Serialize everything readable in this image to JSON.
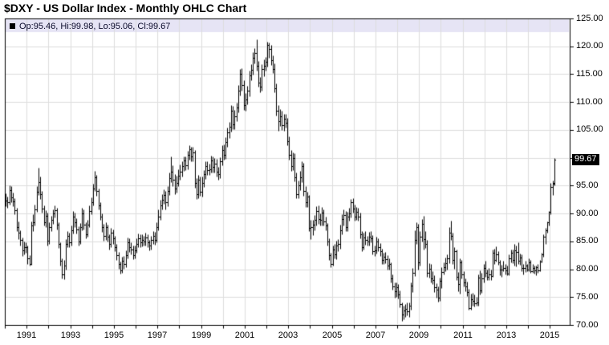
{
  "title": "$DXY - US Dollar Index - Monthly OHLC Chart",
  "legend": {
    "marker": "black-square",
    "text": "Op:95.46, Hi:99.98, Lo:95.06, Cl:99.67"
  },
  "last_price_badge": "99.67",
  "colors": {
    "background": "#ffffff",
    "band": "#e6e4f5",
    "grid": "#dddddd",
    "frame": "#000000",
    "bar": "#000000",
    "badge_bg": "#000000",
    "badge_text": "#ffffff"
  },
  "y_axis": {
    "labels": [
      "125.00",
      "120.00",
      "115.00",
      "110.00",
      "105.00",
      "95.00",
      "90.00",
      "85.00",
      "80.00",
      "75.00",
      "70.00"
    ]
  },
  "x_axis": {
    "labels": [
      "1991",
      "1993",
      "1995",
      "1997",
      "1999",
      "2001",
      "2003",
      "2005",
      "2007",
      "2009",
      "2011",
      "2013",
      "2015"
    ]
  },
  "chart_data": {
    "type": "ohlc",
    "symbol": "$DXY",
    "title": "$DXY - US Dollar Index - Monthly OHLC Chart",
    "timeframe": "Monthly",
    "start": "1990-01",
    "end": "2015-03",
    "ylim": [
      70,
      125
    ],
    "y_tick_step": 5,
    "grid": true,
    "legend_position": "top-left-band",
    "axis_labels_position": "right",
    "last": {
      "open": 95.46,
      "high": 99.98,
      "low": 95.06,
      "close": 99.67
    },
    "first_open": 92.5,
    "start_year": 1990,
    "months_format": "[high, low, close] (open = previous close)",
    "months": [
      [
        93.6,
        91.3,
        92.3
      ],
      [
        93.1,
        91.0,
        92.0
      ],
      [
        95.0,
        91.6,
        94.2
      ],
      [
        94.9,
        92.0,
        92.9
      ],
      [
        93.8,
        91.3,
        92.2
      ],
      [
        92.7,
        89.9,
        90.6
      ],
      [
        91.0,
        86.9,
        87.6
      ],
      [
        88.6,
        85.4,
        86.5
      ],
      [
        87.0,
        84.2,
        85.2
      ],
      [
        85.7,
        82.4,
        83.4
      ],
      [
        85.0,
        82.6,
        84.0
      ],
      [
        84.9,
        82.9,
        83.9
      ],
      [
        84.3,
        81.0,
        82.0
      ],
      [
        82.5,
        80.6,
        81.0
      ],
      [
        88.6,
        80.8,
        87.9
      ],
      [
        89.9,
        86.8,
        88.5
      ],
      [
        91.6,
        87.9,
        90.8
      ],
      [
        94.9,
        90.3,
        93.9
      ],
      [
        98.2,
        93.3,
        95.6
      ],
      [
        96.6,
        92.6,
        93.5
      ],
      [
        94.0,
        90.2,
        90.9
      ],
      [
        91.5,
        87.8,
        88.5
      ],
      [
        90.6,
        87.5,
        89.6
      ],
      [
        90.1,
        84.3,
        85.1
      ],
      [
        88.4,
        84.5,
        87.5
      ],
      [
        89.6,
        86.9,
        88.8
      ],
      [
        90.8,
        88.1,
        90.0
      ],
      [
        91.4,
        89.3,
        90.6
      ],
      [
        91.0,
        87.2,
        88.0
      ],
      [
        88.4,
        83.8,
        84.5
      ],
      [
        84.9,
        80.7,
        81.5
      ],
      [
        81.9,
        78.3,
        79.0
      ],
      [
        81.6,
        78.2,
        80.6
      ],
      [
        85.4,
        79.9,
        84.6
      ],
      [
        86.9,
        83.9,
        86.0
      ],
      [
        86.6,
        84.0,
        84.8
      ],
      [
        87.8,
        84.2,
        87.0
      ],
      [
        90.4,
        86.4,
        89.5
      ],
      [
        90.1,
        87.5,
        88.5
      ],
      [
        89.2,
        86.4,
        87.2
      ],
      [
        87.7,
        84.3,
        85.0
      ],
      [
        88.3,
        84.5,
        87.5
      ],
      [
        91.0,
        87.0,
        90.0
      ],
      [
        90.8,
        87.1,
        88.0
      ],
      [
        88.5,
        85.5,
        86.3
      ],
      [
        88.8,
        85.8,
        88.0
      ],
      [
        91.4,
        87.6,
        90.5
      ],
      [
        92.9,
        89.8,
        92.0
      ],
      [
        95.4,
        91.5,
        94.5
      ],
      [
        97.7,
        94.0,
        96.5
      ],
      [
        96.9,
        93.2,
        94.0
      ],
      [
        94.5,
        90.8,
        91.5
      ],
      [
        92.0,
        88.8,
        89.5
      ],
      [
        90.0,
        86.7,
        87.5
      ],
      [
        88.1,
        85.1,
        86.0
      ],
      [
        88.4,
        85.3,
        87.5
      ],
      [
        88.0,
        85.0,
        85.8
      ],
      [
        86.3,
        83.6,
        84.5
      ],
      [
        87.4,
        83.9,
        86.5
      ],
      [
        87.1,
        84.6,
        85.5
      ],
      [
        86.0,
        83.2,
        84.0
      ],
      [
        84.6,
        81.7,
        82.5
      ],
      [
        83.1,
        80.1,
        80.9
      ],
      [
        81.4,
        79.2,
        79.8
      ],
      [
        82.3,
        79.3,
        81.5
      ],
      [
        82.4,
        80.1,
        81.0
      ],
      [
        83.4,
        80.3,
        82.5
      ],
      [
        85.7,
        81.9,
        84.8
      ],
      [
        85.6,
        83.1,
        84.0
      ],
      [
        84.9,
        82.6,
        83.5
      ],
      [
        84.2,
        81.8,
        82.5
      ],
      [
        84.2,
        81.9,
        83.4
      ],
      [
        85.5,
        82.9,
        84.6
      ],
      [
        86.4,
        83.9,
        85.6
      ],
      [
        86.3,
        84.0,
        84.8
      ],
      [
        86.2,
        84.1,
        85.3
      ],
      [
        86.0,
        84.2,
        85.0
      ],
      [
        86.5,
        84.3,
        85.7
      ],
      [
        86.2,
        84.0,
        84.8
      ],
      [
        85.3,
        83.4,
        84.2
      ],
      [
        86.0,
        83.5,
        85.2
      ],
      [
        86.9,
        84.5,
        86.0
      ],
      [
        86.7,
        84.4,
        85.3
      ],
      [
        88.4,
        84.8,
        87.6
      ],
      [
        90.8,
        87.0,
        89.5
      ],
      [
        92.5,
        88.8,
        91.5
      ],
      [
        93.4,
        90.7,
        92.5
      ],
      [
        94.4,
        91.7,
        93.3
      ],
      [
        94.0,
        90.8,
        92.0
      ],
      [
        94.9,
        91.3,
        94.0
      ],
      [
        97.4,
        93.3,
        96.3
      ],
      [
        100.3,
        95.6,
        97.5
      ],
      [
        98.6,
        94.9,
        96.0
      ],
      [
        97.0,
        93.5,
        94.5
      ],
      [
        96.8,
        93.8,
        95.5
      ],
      [
        97.9,
        94.9,
        96.8
      ],
      [
        98.8,
        96.0,
        97.5
      ],
      [
        99.4,
        96.6,
        98.5
      ],
      [
        100.3,
        97.6,
        99.5
      ],
      [
        100.2,
        97.8,
        98.6
      ],
      [
        101.3,
        97.9,
        100.5
      ],
      [
        102.2,
        99.6,
        101.5
      ],
      [
        102.0,
        99.4,
        100.2
      ],
      [
        102.0,
        99.3,
        101.0
      ],
      [
        101.4,
        94.6,
        95.5
      ],
      [
        96.4,
        92.6,
        93.5
      ],
      [
        96.9,
        92.8,
        96.0
      ],
      [
        96.7,
        93.2,
        93.9
      ],
      [
        96.6,
        93.1,
        95.5
      ],
      [
        97.8,
        94.8,
        97.0
      ],
      [
        99.3,
        96.2,
        98.5
      ],
      [
        99.4,
        96.9,
        97.8
      ],
      [
        99.0,
        96.9,
        98.0
      ],
      [
        100.4,
        97.3,
        99.5
      ],
      [
        100.2,
        97.4,
        98.3
      ],
      [
        99.9,
        97.3,
        99.0
      ],
      [
        99.8,
        96.7,
        97.5
      ],
      [
        98.4,
        96.1,
        97.0
      ],
      [
        100.1,
        96.4,
        99.3
      ],
      [
        102.3,
        98.6,
        101.4
      ],
      [
        102.4,
        99.6,
        100.5
      ],
      [
        103.7,
        99.8,
        102.8
      ],
      [
        105.4,
        101.9,
        104.5
      ],
      [
        106.4,
        103.6,
        105.5
      ],
      [
        109.4,
        104.7,
        108.5
      ],
      [
        109.3,
        105.1,
        106.0
      ],
      [
        108.6,
        105.2,
        107.5
      ],
      [
        109.9,
        106.6,
        109.0
      ],
      [
        113.0,
        108.1,
        112.0
      ],
      [
        116.0,
        111.2,
        115.0
      ],
      [
        116.1,
        112.1,
        113.0
      ],
      [
        113.9,
        108.6,
        109.5
      ],
      [
        111.6,
        108.5,
        110.5
      ],
      [
        112.9,
        109.6,
        112.0
      ],
      [
        115.7,
        111.1,
        114.8
      ],
      [
        116.8,
        113.9,
        115.8
      ],
      [
        118.9,
        114.9,
        118.0
      ],
      [
        119.7,
        116.9,
        118.8
      ],
      [
        121.3,
        115.7,
        116.5
      ],
      [
        117.4,
        112.7,
        113.5
      ],
      [
        114.5,
        111.8,
        112.8
      ],
      [
        116.8,
        112.0,
        115.9
      ],
      [
        117.6,
        114.6,
        116.5
      ],
      [
        118.1,
        115.6,
        117.2
      ],
      [
        120.8,
        116.4,
        120.2
      ],
      [
        120.7,
        118.0,
        119.5
      ],
      [
        120.3,
        116.7,
        117.5
      ],
      [
        118.4,
        115.2,
        116.0
      ],
      [
        116.9,
        111.8,
        112.5
      ],
      [
        113.4,
        107.6,
        108.5
      ],
      [
        109.4,
        104.9,
        106.5
      ],
      [
        108.8,
        105.7,
        107.5
      ],
      [
        108.4,
        105.0,
        105.8
      ],
      [
        107.9,
        104.9,
        107.0
      ],
      [
        107.9,
        105.4,
        106.3
      ],
      [
        107.1,
        102.3,
        103.0
      ],
      [
        103.8,
        99.6,
        100.5
      ],
      [
        101.4,
        97.7,
        98.5
      ],
      [
        101.0,
        97.8,
        100.0
      ],
      [
        100.8,
        95.8,
        96.5
      ],
      [
        97.4,
        92.8,
        93.5
      ],
      [
        95.9,
        92.7,
        95.0
      ],
      [
        97.6,
        94.2,
        96.5
      ],
      [
        99.4,
        95.7,
        98.5
      ],
      [
        99.1,
        93.2,
        94.0
      ],
      [
        94.9,
        91.2,
        92.0
      ],
      [
        93.9,
        91.1,
        93.0
      ],
      [
        93.3,
        86.8,
        87.4
      ],
      [
        88.8,
        85.4,
        87.5
      ],
      [
        88.9,
        86.1,
        88.0
      ],
      [
        89.7,
        87.0,
        88.8
      ],
      [
        91.3,
        87.9,
        90.5
      ],
      [
        91.4,
        88.2,
        89.0
      ],
      [
        90.0,
        87.9,
        88.8
      ],
      [
        91.1,
        87.9,
        90.2
      ],
      [
        90.8,
        87.8,
        88.6
      ],
      [
        89.4,
        87.0,
        87.8
      ],
      [
        88.3,
        84.3,
        85.0
      ],
      [
        85.6,
        81.7,
        82.5
      ],
      [
        83.0,
        80.3,
        80.9
      ],
      [
        84.3,
        80.6,
        83.5
      ],
      [
        84.5,
        81.9,
        82.6
      ],
      [
        85.1,
        81.8,
        84.2
      ],
      [
        85.4,
        83.2,
        84.5
      ],
      [
        88.0,
        83.7,
        87.0
      ],
      [
        89.9,
        86.2,
        89.0
      ],
      [
        90.7,
        87.9,
        89.7
      ],
      [
        90.4,
        86.8,
        87.5
      ],
      [
        90.3,
        86.9,
        89.5
      ],
      [
        91.0,
        88.7,
        90.0
      ],
      [
        92.6,
        89.3,
        92.0
      ],
      [
        92.7,
        90.1,
        90.9
      ],
      [
        91.6,
        88.7,
        89.5
      ],
      [
        91.2,
        88.8,
        90.3
      ],
      [
        91.0,
        88.7,
        89.5
      ],
      [
        90.2,
        85.5,
        86.2
      ],
      [
        86.9,
        83.3,
        84.0
      ],
      [
        86.5,
        83.5,
        85.7
      ],
      [
        86.8,
        84.4,
        85.2
      ],
      [
        86.0,
        84.2,
        85.0
      ],
      [
        86.7,
        84.3,
        85.9
      ],
      [
        86.8,
        84.8,
        85.5
      ],
      [
        86.1,
        82.6,
        83.3
      ],
      [
        84.2,
        82.4,
        83.4
      ],
      [
        85.8,
        82.8,
        85.0
      ],
      [
        85.6,
        83.3,
        84.0
      ],
      [
        84.7,
        82.4,
        83.2
      ],
      [
        83.7,
        81.0,
        81.6
      ],
      [
        82.9,
        81.0,
        82.2
      ],
      [
        83.1,
        81.1,
        81.8
      ],
      [
        82.5,
        80.0,
        80.6
      ],
      [
        81.9,
        79.9,
        80.9
      ],
      [
        81.3,
        77.7,
        78.4
      ],
      [
        79.0,
        76.3,
        76.9
      ],
      [
        77.6,
        74.9,
        76.0
      ],
      [
        77.7,
        75.1,
        76.7
      ],
      [
        77.3,
        74.8,
        75.5
      ],
      [
        76.2,
        73.1,
        73.7
      ],
      [
        74.1,
        70.7,
        71.8
      ],
      [
        73.4,
        71.0,
        72.6
      ],
      [
        73.8,
        71.5,
        72.9
      ],
      [
        74.0,
        71.7,
        72.5
      ],
      [
        74.0,
        71.5,
        73.4
      ],
      [
        77.6,
        72.8,
        77.0
      ],
      [
        80.2,
        75.9,
        79.3
      ],
      [
        87.0,
        78.8,
        85.3
      ],
      [
        88.5,
        84.6,
        87.6
      ],
      [
        88.2,
        80.0,
        81.2
      ],
      [
        86.8,
        80.7,
        85.8
      ],
      [
        89.0,
        85.0,
        88.1
      ],
      [
        89.6,
        83.6,
        85.4
      ],
      [
        86.9,
        83.8,
        84.6
      ],
      [
        85.2,
        78.6,
        79.3
      ],
      [
        81.1,
        78.5,
        80.1
      ],
      [
        81.0,
        77.6,
        78.3
      ],
      [
        79.6,
        77.4,
        78.1
      ],
      [
        78.9,
        75.9,
        76.7
      ],
      [
        77.5,
        74.9,
        76.4
      ],
      [
        76.9,
        74.2,
        74.9
      ],
      [
        78.5,
        74.3,
        77.9
      ],
      [
        80.3,
        76.6,
        79.5
      ],
      [
        81.3,
        79.0,
        80.4
      ],
      [
        82.1,
        79.6,
        81.1
      ],
      [
        82.7,
        80.0,
        81.9
      ],
      [
        87.5,
        81.1,
        86.6
      ],
      [
        88.7,
        85.2,
        86.0
      ],
      [
        86.6,
        80.9,
        81.6
      ],
      [
        83.9,
        80.1,
        83.2
      ],
      [
        83.5,
        78.0,
        78.7
      ],
      [
        79.5,
        76.1,
        77.3
      ],
      [
        81.9,
        75.6,
        81.2
      ],
      [
        81.6,
        78.3,
        79.0
      ],
      [
        79.7,
        76.9,
        77.7
      ],
      [
        78.3,
        76.1,
        76.9
      ],
      [
        77.8,
        75.2,
        75.9
      ],
      [
        76.5,
        72.8,
        73.0
      ],
      [
        75.6,
        72.7,
        74.6
      ],
      [
        75.8,
        73.5,
        74.3
      ],
      [
        75.4,
        73.3,
        73.9
      ],
      [
        75.0,
        73.4,
        74.1
      ],
      [
        79.1,
        73.5,
        78.5
      ],
      [
        79.8,
        75.4,
        76.2
      ],
      [
        79.3,
        75.8,
        78.3
      ],
      [
        81.0,
        77.6,
        80.2
      ],
      [
        81.5,
        78.7,
        79.3
      ],
      [
        79.9,
        78.1,
        78.7
      ],
      [
        80.2,
        78.1,
        79.0
      ],
      [
        80.0,
        78.1,
        78.8
      ],
      [
        83.6,
        78.6,
        83.0
      ],
      [
        83.7,
        81.0,
        81.6
      ],
      [
        84.1,
        81.4,
        82.7
      ],
      [
        83.3,
        80.8,
        81.2
      ],
      [
        81.6,
        78.9,
        79.9
      ],
      [
        80.8,
        78.7,
        80.0
      ],
      [
        81.5,
        79.6,
        80.2
      ],
      [
        80.9,
        79.0,
        79.8
      ],
      [
        80.7,
        78.9,
        79.2
      ],
      [
        82.6,
        78.9,
        81.9
      ],
      [
        83.6,
        81.3,
        83.0
      ],
      [
        83.5,
        81.1,
        81.7
      ],
      [
        84.5,
        80.6,
        83.4
      ],
      [
        84.2,
        80.5,
        83.1
      ],
      [
        84.8,
        81.0,
        81.5
      ],
      [
        82.8,
        80.8,
        82.1
      ],
      [
        82.7,
        79.7,
        80.2
      ],
      [
        80.9,
        79.1,
        80.2
      ],
      [
        81.5,
        79.5,
        80.7
      ],
      [
        81.0,
        79.7,
        80.0
      ],
      [
        81.9,
        79.7,
        81.3
      ],
      [
        81.6,
        79.4,
        79.7
      ],
      [
        80.9,
        79.3,
        80.2
      ],
      [
        80.6,
        79.2,
        79.8
      ],
      [
        80.7,
        78.9,
        80.4
      ],
      [
        81.0,
        79.3,
        79.8
      ],
      [
        81.7,
        79.7,
        81.4
      ],
      [
        82.9,
        81.2,
        82.7
      ],
      [
        86.2,
        82.3,
        85.9
      ],
      [
        87.4,
        84.5,
        87.0
      ],
      [
        88.6,
        86.5,
        88.4
      ],
      [
        90.5,
        87.8,
        90.3
      ],
      [
        95.5,
        89.8,
        94.8
      ],
      [
        95.9,
        93.3,
        95.3
      ],
      [
        99.98,
        95.06,
        99.67
      ]
    ]
  }
}
